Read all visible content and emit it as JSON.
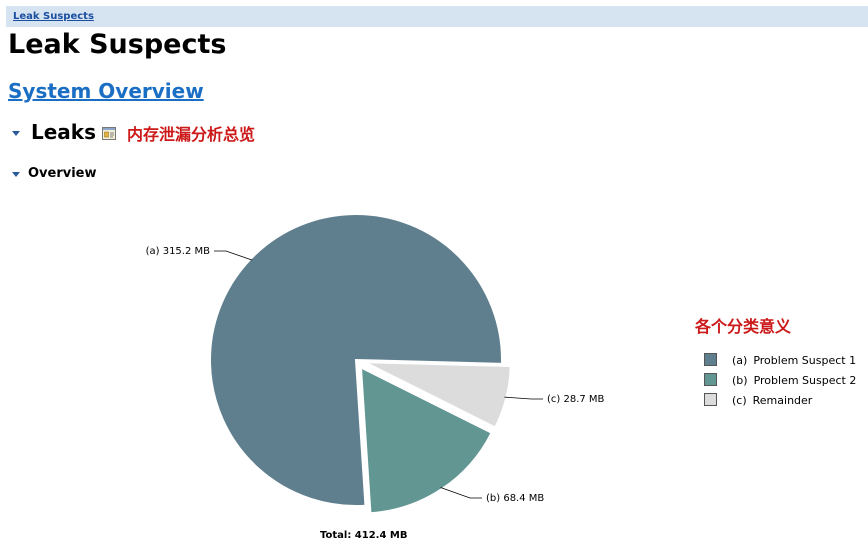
{
  "breadcrumb": {
    "label": "Leak Suspects"
  },
  "page_title": "Leak Suspects",
  "section_link": "System Overview",
  "leaks": {
    "heading": "Leaks",
    "annotation": "内存泄漏分析总览",
    "details_icon": "details-icon"
  },
  "overview": {
    "heading": "Overview"
  },
  "legend_annotation": "各个分类意义",
  "colors": {
    "suspect1": "#607f8e",
    "suspect2": "#629693",
    "remainder": "#dcdcdc",
    "annotation": "#cc1a1a",
    "link": "#1a6fc4",
    "breadcrumb_bg": "#d6e3f0"
  },
  "chart_data": {
    "type": "pie",
    "unit": "MB",
    "slices": [
      {
        "tag": "(a)",
        "value": 315.2,
        "label": "315.2 MB",
        "legend": "Problem Suspect 1",
        "color": "#607f8e",
        "exploded": false
      },
      {
        "tag": "(b)",
        "value": 68.4,
        "label": "68.4 MB",
        "legend": "Problem Suspect 2",
        "color": "#629693",
        "exploded": true
      },
      {
        "tag": "(c)",
        "value": 28.7,
        "label": "28.7 MB",
        "legend": "Remainder",
        "color": "#dcdcdc",
        "exploded": true
      }
    ],
    "total_label": "Total: 412.4 MB",
    "legend_position": "right"
  }
}
